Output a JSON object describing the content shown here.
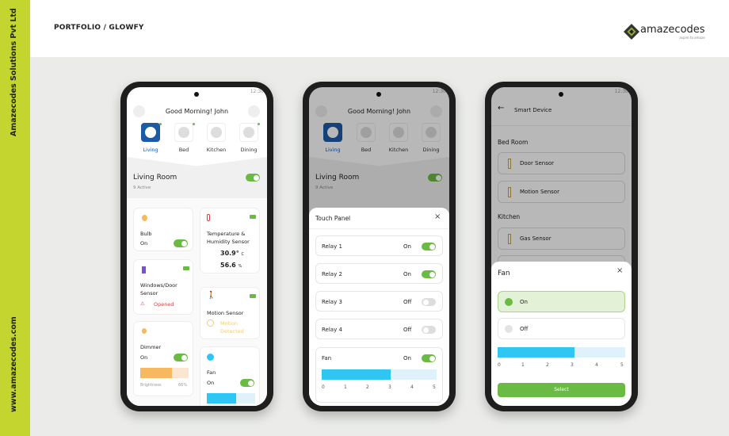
{
  "brand": {
    "sidebar_company": "Amazecodes Solutions Pvt Ltd",
    "sidebar_website": "www.amazecodes.com",
    "breadcrumb": "PORTFOLIO / GLOWFY",
    "logo_name": "amazecodes",
    "logo_tagline": "aspire to amaze",
    "accent": "#c4d52f"
  },
  "status_time": "12:30",
  "home": {
    "greeting": "Good Morning! John",
    "rooms": [
      {
        "label": "Living",
        "selected": true
      },
      {
        "label": "Bed"
      },
      {
        "label": "Kitchen"
      },
      {
        "label": "Dining"
      }
    ],
    "room_title": "Living Room",
    "active": "9 Active",
    "bulb": {
      "name": "Bulb",
      "state": "On"
    },
    "temp": {
      "name": "Temperature & Humidity Sensor",
      "temp": "30.9°",
      "temp_unit": "C",
      "hum": "56.6",
      "hum_unit": "%"
    },
    "window": {
      "name": "Windows/Door Sensor",
      "status": "Opened"
    },
    "motion": {
      "name": "Motion Sensor",
      "status": "Motion Detected"
    },
    "dimmer": {
      "name": "Dimmer",
      "state": "On",
      "brightness_label": "Brightness",
      "brightness": "66%"
    },
    "fan": {
      "name": "Fan",
      "state": "On"
    }
  },
  "touch_panel": {
    "title": "Touch Panel",
    "rows": [
      {
        "label": "Relay 1",
        "state": "On"
      },
      {
        "label": "Relay 2",
        "state": "On"
      },
      {
        "label": "Relay 3",
        "state": "Off"
      },
      {
        "label": "Relay 4",
        "state": "Off"
      }
    ],
    "fan": {
      "label": "Fan",
      "state": "On",
      "speed": 3
    },
    "ticks": [
      "0",
      "1",
      "2",
      "3",
      "4",
      "5"
    ]
  },
  "smart": {
    "title": "Smart Device",
    "sections": [
      {
        "name": "Bed Room",
        "items": [
          "Door Sensor",
          "Motion Sensor"
        ]
      },
      {
        "name": "Kitchen",
        "items": [
          "Gas Sensor"
        ]
      }
    ],
    "sheet": {
      "title": "Fan",
      "on": "On",
      "off": "Off",
      "speed": 3,
      "select": "Select"
    }
  },
  "colors": {
    "green": "#6abb43",
    "blue": "#1c5aa6",
    "cyan": "#2ec7f3",
    "red": "#e0393e",
    "orange": "#f6b95f"
  }
}
